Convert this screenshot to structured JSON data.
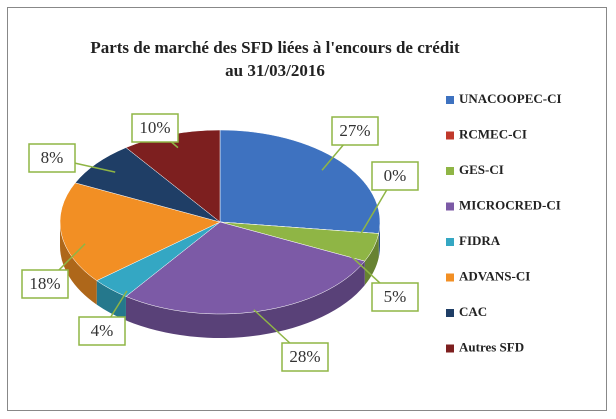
{
  "chart_data": {
    "type": "pie",
    "title": "Parts de marché des SFD liées à l'encours de crédit au 31/03/2016",
    "categories": [
      "UNACOOPEC-CI",
      "RCMEC-CI",
      "GES-CI",
      "MICROCRED-CI",
      "FIDRA",
      "ADVANS-CI",
      "CAC",
      "Autres SFD"
    ],
    "values": [
      27,
      0,
      5,
      28,
      4,
      18,
      8,
      10
    ],
    "value_labels": [
      "27%",
      "0%",
      "5%",
      "28%",
      "4%",
      "18%",
      "8%",
      "10%"
    ],
    "colors": [
      "#3e72c0",
      "#c0392b",
      "#8fb545",
      "#7c5aa6",
      "#34a7c3",
      "#f28f24",
      "#1f3e66",
      "#7d1f1f"
    ],
    "legend": "right"
  }
}
